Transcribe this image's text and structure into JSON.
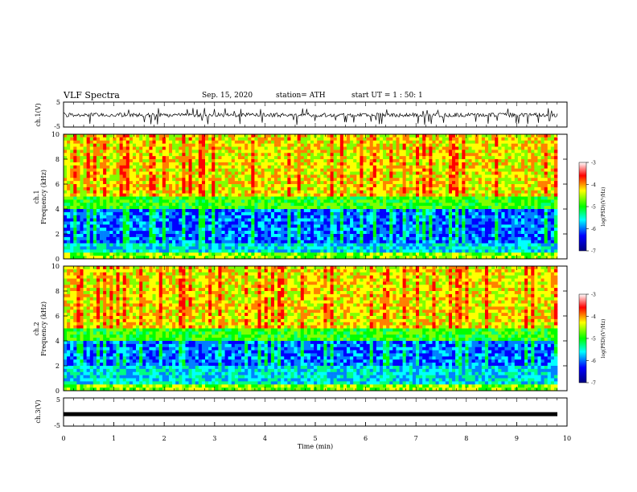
{
  "header": {
    "title": "VLF Spectra",
    "date": "Sep. 15, 2020",
    "station": "station= ATH",
    "start": "start  UT =   1 : 50: 1"
  },
  "chart_data": [
    {
      "type": "line",
      "name": "ch1-waveform",
      "ylabel": "ch.1(V)",
      "ylim": [
        -5,
        5
      ],
      "yticks": [
        "5",
        "-5"
      ],
      "xlim": [
        0,
        10
      ],
      "description_values": "noisy waveform centered near 0 V with spikes to about -4 V"
    },
    {
      "type": "heatmap",
      "name": "ch1-spectrogram",
      "ylabel": "ch.1 Frequency (kHz)",
      "xlim": [
        0,
        10
      ],
      "ylim": [
        0,
        10
      ],
      "yticks": [
        "0",
        "2",
        "4",
        "6",
        "8",
        "10"
      ],
      "colorbar": {
        "label": "log(PSD)(V²/Hz)",
        "range": [
          -7,
          -3
        ],
        "ticks": [
          "-3",
          "-4",
          "-5",
          "-6",
          "-7"
        ],
        "colors": [
          "#000080",
          "#0000ff",
          "#00ffff",
          "#00ff00",
          "#ffff00",
          "#ff0000",
          "#ffffff"
        ]
      }
    },
    {
      "type": "heatmap",
      "name": "ch2-spectrogram",
      "ylabel": "ch.2 Frequency (kHz)",
      "xlim": [
        0,
        10
      ],
      "ylim": [
        0,
        10
      ],
      "yticks": [
        "0",
        "2",
        "4",
        "6",
        "8",
        "10"
      ],
      "colorbar": {
        "label": "log(PSD)(V²/Hz)",
        "range": [
          -7,
          -3
        ],
        "ticks": [
          "-3",
          "-4",
          "-5",
          "-6",
          "-7"
        ]
      }
    },
    {
      "type": "line",
      "name": "ch3-waveform",
      "ylabel": "ch.3(V)",
      "ylim": [
        -5,
        5
      ],
      "yticks": [
        "5",
        "-5"
      ],
      "xlim": [
        0,
        10
      ],
      "xlabel": "Time (min)",
      "xticks": [
        "0",
        "1",
        "2",
        "3",
        "4",
        "5",
        "6",
        "7",
        "8",
        "9",
        "10"
      ],
      "level": -0.8
    }
  ]
}
